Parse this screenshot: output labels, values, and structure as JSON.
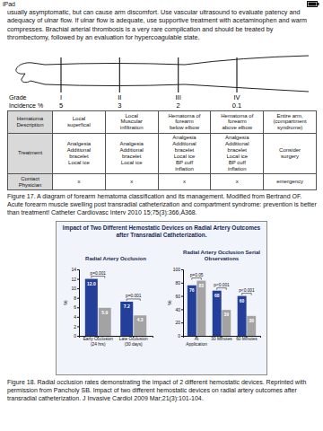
{
  "status_bar": {
    "device": "iPad"
  },
  "paragraph": "usually asymptomatic, but can cause arm discomfort. Use vascular ultrasound to evaluate patency and adequacy of ulnar flow. If ulnar flow is adequate, use supportive treatment with acetaminophen and warm compresses. Brachial arterial thrombosis is a very rare complication and should be treated by thrombectomy, followed by an evaluation for hypercoagulable state.",
  "diagram": {
    "grade_label": "Grade",
    "incidence_label": "Incidence %",
    "grades": [
      "I",
      "II",
      "III",
      "IV"
    ],
    "incidence": [
      5,
      3,
      2,
      0.1
    ]
  },
  "table": {
    "row_headers": [
      "Hematoma Description",
      "Treatment",
      "Contact Physician"
    ],
    "columns": [
      {
        "description": [
          "Local",
          "superfical"
        ],
        "treatment": [
          "Analgesia",
          "Additional",
          "bracelet",
          "Local ice"
        ],
        "contact": [
          "x"
        ]
      },
      {
        "description": [
          "Local",
          "Muscular",
          "infiltration"
        ],
        "treatment": [
          "Analgesia",
          "Additional",
          "bracelet",
          "Local ice"
        ],
        "contact": [
          "x"
        ]
      },
      {
        "description": [
          "Hematoma of",
          "forearm",
          "below elbow"
        ],
        "treatment": [
          "Analgesia",
          "Additional",
          "bracelet",
          "Local ice",
          "BP cuff",
          "inflation"
        ],
        "contact": [
          "x"
        ]
      },
      {
        "description": [
          "Hematoma of",
          "forearm",
          "above elbow"
        ],
        "treatment": [
          "Analgesia",
          "Additional",
          "bracelet",
          "Local ice",
          "BP cuff",
          "inflation"
        ],
        "contact": [
          "x"
        ]
      },
      {
        "description": [
          "Entire arm,",
          "(compartment",
          "syndrome)"
        ],
        "treatment": [
          "Consider",
          "surgery"
        ],
        "contact": [
          "emergency"
        ]
      }
    ]
  },
  "figure_17_caption": "Figure 17. A diagram of forearm hematoma classification and its management. Modified from Bertrand OF. Acute forearm muscle swelling post transradial catheterization and compartment syndrome: prevention is better than treatment! Catheter Cardiovasc Interv 2010 15;75(3):366,Ä368.",
  "figure_18_title": "Impact of Two Different Hemostatic Devices on Radial Artery Outcomes after Transradial Catheterization.",
  "chart_data": [
    {
      "type": "bar",
      "title": "Radial Artery Occlusion",
      "categories": [
        "Early Occlusion (24 hrs)",
        "Late Occlusion (30 days)"
      ],
      "series": [
        {
          "color": "#243f99",
          "values": [
            12,
            7.2
          ],
          "value_labels": [
            "12.0",
            "7.2"
          ]
        },
        {
          "color": "#a3a3a3",
          "values": [
            5.9,
            4.3
          ]
        }
      ],
      "ylabel": "%",
      "ylim": [
        0,
        14
      ],
      "yticks": [
        0,
        2,
        4,
        6,
        8,
        10,
        12,
        14
      ],
      "data_labels": true,
      "annotations": [
        "p=0.001",
        "p=0.001"
      ]
    },
    {
      "type": "bar",
      "title": "Radial Artery Occlusion Serial Observations",
      "categories": [
        "At Application",
        "30 Minutes",
        "60 Minutes"
      ],
      "series": [
        {
          "color": "#243f99",
          "values": [
            76,
            68,
            60
          ]
        },
        {
          "color": "#a3a3a3",
          "values": [
            83,
            39,
            30
          ]
        }
      ],
      "ylabel": "%",
      "ylim": [
        0,
        100
      ],
      "yticks": [
        0,
        20,
        40,
        60,
        80,
        100
      ],
      "data_labels": true,
      "annotations": [
        "p=0.05",
        "p<0.001",
        "p<0.001"
      ]
    }
  ],
  "figure_18_caption": "Figure 18. Radial occlusion rates demonstrating the impact of 2 different hemostatic devices. Reprinted with permission from Pancholy SB. Impact of two different hemostatic devices on radial artery outcomes after transradial catheterization. J Invasive Cardiol 2009 Mar;21(3):101-104."
}
